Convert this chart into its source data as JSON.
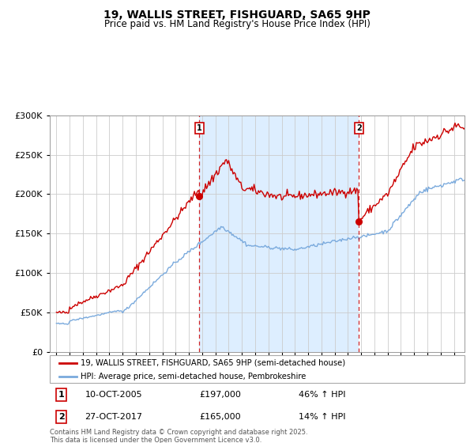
{
  "title": "19, WALLIS STREET, FISHGUARD, SA65 9HP",
  "subtitle": "Price paid vs. HM Land Registry's House Price Index (HPI)",
  "legend_line1": "19, WALLIS STREET, FISHGUARD, SA65 9HP (semi-detached house)",
  "legend_line2": "HPI: Average price, semi-detached house, Pembrokeshire",
  "annotation1_date": "10-OCT-2005",
  "annotation1_price": "£197,000",
  "annotation1_hpi": "46% ↑ HPI",
  "annotation2_date": "27-OCT-2017",
  "annotation2_price": "£165,000",
  "annotation2_hpi": "14% ↑ HPI",
  "footer": "Contains HM Land Registry data © Crown copyright and database right 2025.\nThis data is licensed under the Open Government Licence v3.0.",
  "red_color": "#cc0000",
  "blue_color": "#7aaadd",
  "bg_color": "#ddeeff",
  "grid_color": "#cccccc",
  "marker1_x_year": 2005.78,
  "marker1_y": 197000,
  "marker2_x_year": 2017.82,
  "marker2_y": 165000,
  "vline1_x": 2005.78,
  "vline2_x": 2017.82,
  "ylim": [
    0,
    300000
  ],
  "xlim_start": 1994.5,
  "xlim_end": 2025.8
}
